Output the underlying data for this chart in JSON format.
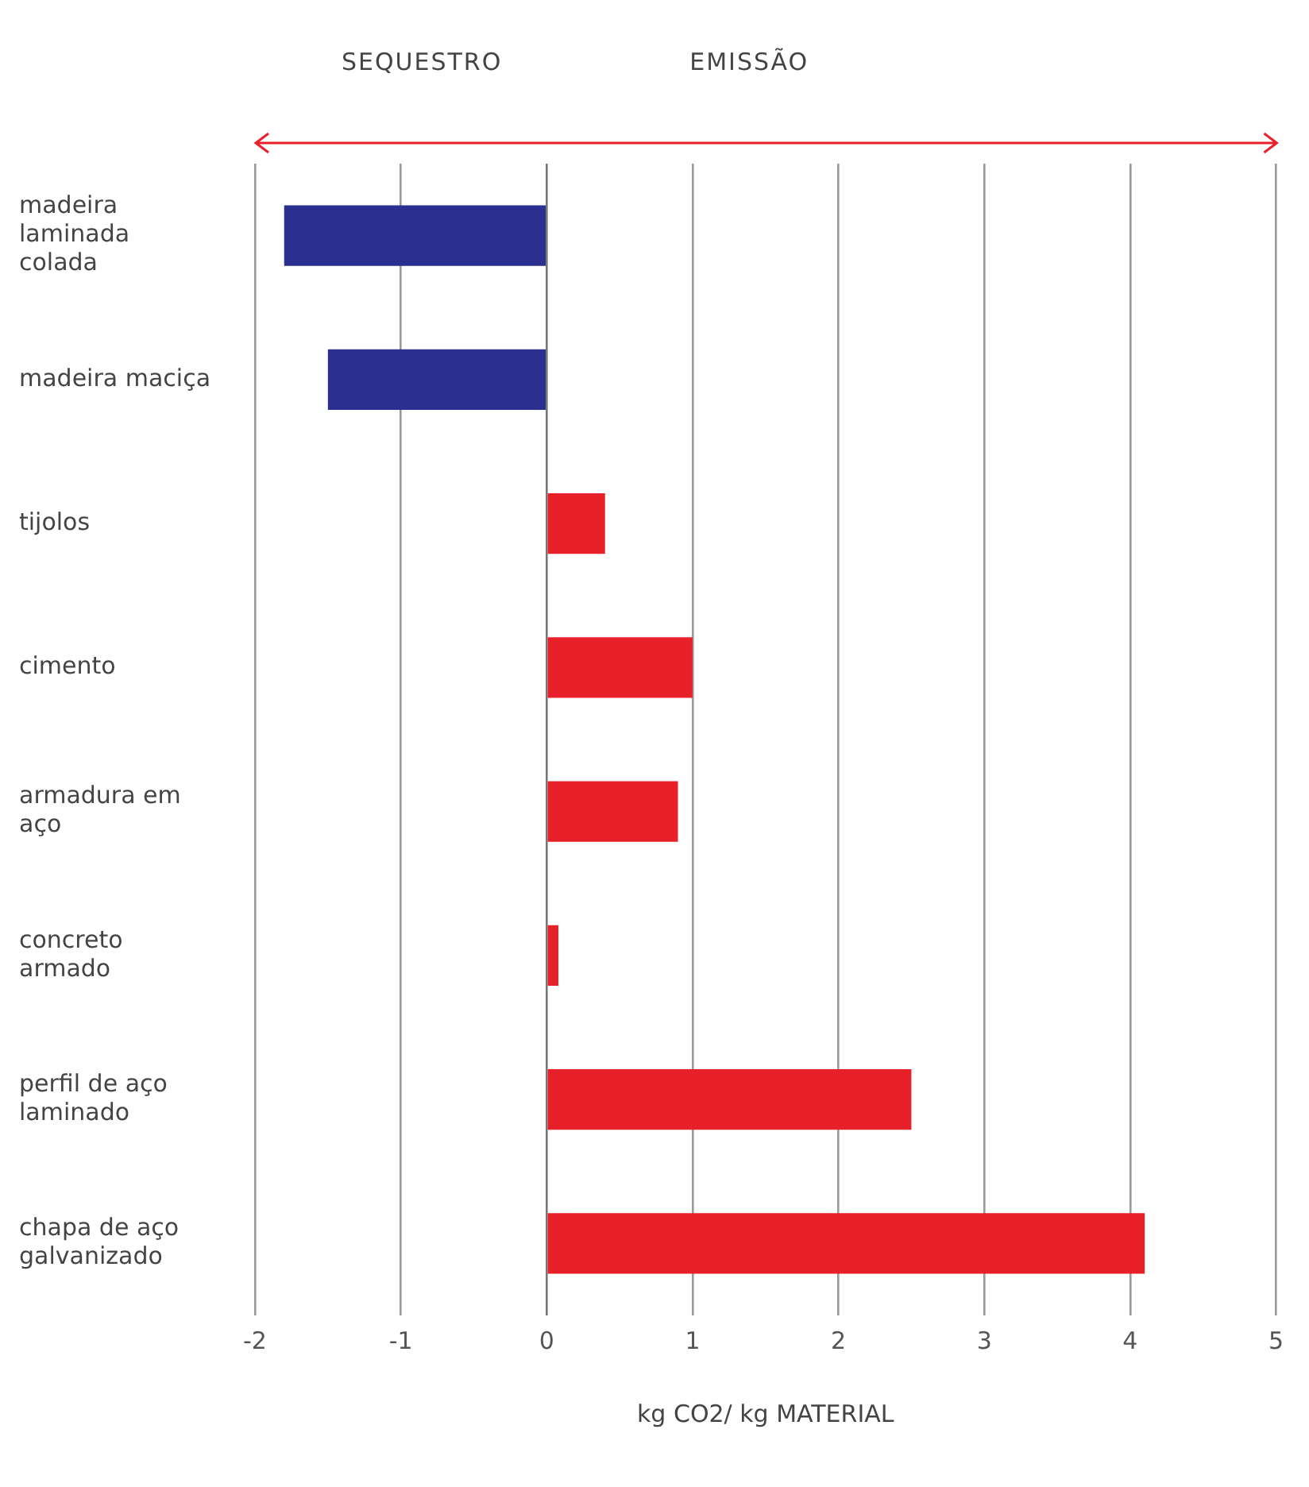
{
  "chart_data": {
    "type": "bar",
    "orientation": "horizontal",
    "xlabel": "kg CO2/ kg MATERIAL",
    "categories": [
      "madeira laminada colada",
      "madeira maciça",
      "tijolos",
      "cimento",
      "armadura em aço",
      "concreto armado",
      "perfil de aço laminado",
      "chapa de aço galvanizado"
    ],
    "values": [
      -1.8,
      -1.5,
      0.4,
      1.0,
      0.9,
      0.08,
      2.5,
      4.1
    ],
    "colors": [
      "#2b2f8f",
      "#2b2f8f",
      "#e8202a",
      "#e8202a",
      "#e8202a",
      "#e8202a",
      "#e8202a",
      "#e8202a"
    ],
    "xlim": [
      -2,
      5
    ],
    "xticks": [
      -2,
      -1,
      0,
      1,
      2,
      3,
      4,
      5
    ],
    "grid": "x",
    "legend": false,
    "annotations": [
      "SEQUESTRO",
      "EMISSÃO"
    ]
  }
}
